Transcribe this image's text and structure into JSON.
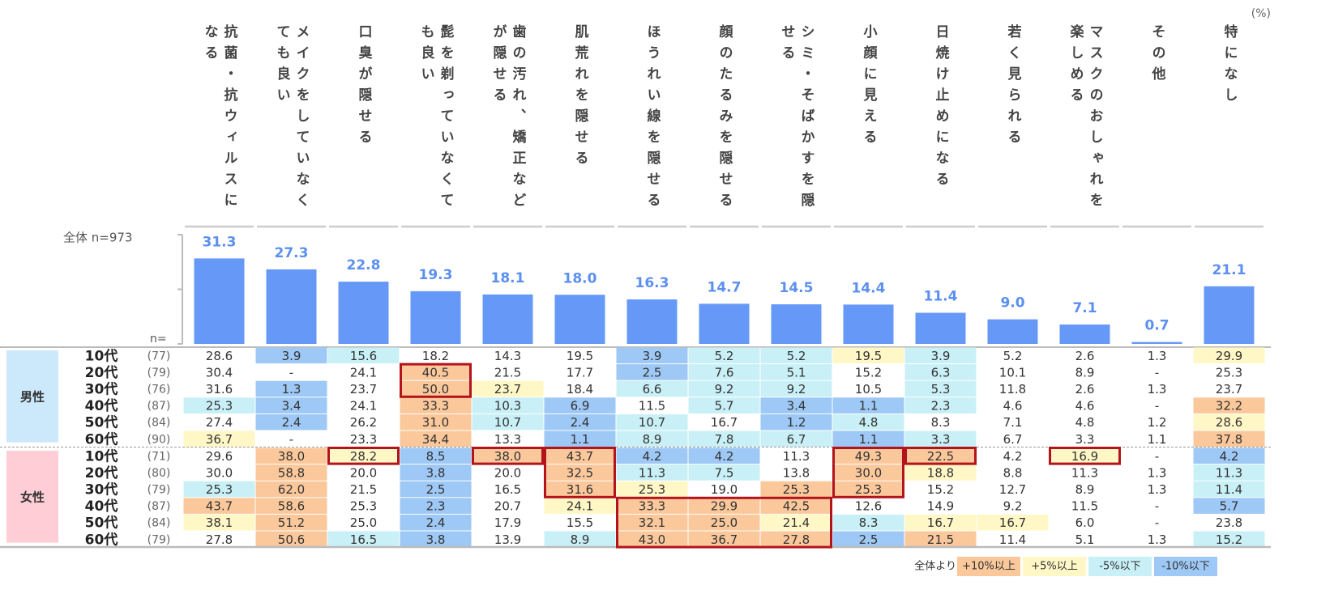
{
  "unit": "(%)",
  "total_label": "全体 n=973",
  "n_label": "n=",
  "chart_data": {
    "type": "bar",
    "categories": [
      "抗菌・抗ウィルスになる",
      "メイクをしていなくても良い",
      "口臭が隠せる",
      "髭を剃っていなくても良い",
      "歯の汚れ、矯正などが隠せる",
      "肌荒れを隠せる",
      "ほうれい線を隠せる",
      "顔のたるみを隠せる",
      "シミ・そばかすを隠せる",
      "小顔に見える",
      "日焼け止めになる",
      "若く見られる",
      "マスクのおしゃれを楽しめる",
      "その他",
      "特になし"
    ],
    "values": [
      31.3,
      27.3,
      22.8,
      19.3,
      18.1,
      18.0,
      16.3,
      14.7,
      14.5,
      14.4,
      11.4,
      9.0,
      7.1,
      0.7,
      21.1
    ],
    "value_labels": [
      "31.3",
      "27.3",
      "22.8",
      "19.3",
      "18.1",
      "18.0",
      "16.3",
      "14.7",
      "14.5",
      "14.4",
      "11.4",
      "9.0",
      "7.1",
      "0.7",
      "21.1"
    ],
    "color": "#6699f7",
    "label_color": "#5b8ff0",
    "ylim": [
      0,
      40
    ],
    "yticks": [
      0,
      20,
      40
    ]
  },
  "table": {
    "groups": [
      {
        "name": "男性",
        "color": "#cce8fb",
        "rows": [
          {
            "age": "10代",
            "n": "(77)",
            "cells": [
              "28.6",
              "3.9",
              "15.6",
              "18.2",
              "14.3",
              "19.5",
              "3.9",
              "5.2",
              "5.2",
              "19.5",
              "3.9",
              "5.2",
              "2.6",
              "1.3",
              "29.9"
            ]
          },
          {
            "age": "20代",
            "n": "(79)",
            "cells": [
              "30.4",
              "-",
              "24.1",
              "40.5",
              "21.5",
              "17.7",
              "2.5",
              "7.6",
              "5.1",
              "15.2",
              "6.3",
              "10.1",
              "8.9",
              "-",
              "25.3"
            ]
          },
          {
            "age": "30代",
            "n": "(76)",
            "cells": [
              "31.6",
              "1.3",
              "23.7",
              "50.0",
              "23.7",
              "18.4",
              "6.6",
              "9.2",
              "9.2",
              "10.5",
              "5.3",
              "11.8",
              "2.6",
              "1.3",
              "23.7"
            ]
          },
          {
            "age": "40代",
            "n": "(87)",
            "cells": [
              "25.3",
              "3.4",
              "24.1",
              "33.3",
              "10.3",
              "6.9",
              "11.5",
              "5.7",
              "3.4",
              "1.1",
              "2.3",
              "4.6",
              "4.6",
              "-",
              "32.2"
            ]
          },
          {
            "age": "50代",
            "n": "(84)",
            "cells": [
              "27.4",
              "2.4",
              "26.2",
              "31.0",
              "10.7",
              "2.4",
              "10.7",
              "16.7",
              "1.2",
              "4.8",
              "8.3",
              "7.1",
              "4.8",
              "1.2",
              "28.6"
            ]
          },
          {
            "age": "60代",
            "n": "(90)",
            "cells": [
              "36.7",
              "-",
              "23.3",
              "34.4",
              "13.3",
              "1.1",
              "8.9",
              "7.8",
              "6.7",
              "1.1",
              "3.3",
              "6.7",
              "3.3",
              "1.1",
              "37.8"
            ]
          }
        ]
      },
      {
        "name": "女性",
        "color": "#ffcdd6",
        "rows": [
          {
            "age": "10代",
            "n": "(71)",
            "cells": [
              "29.6",
              "38.0",
              "28.2",
              "8.5",
              "38.0",
              "43.7",
              "4.2",
              "4.2",
              "11.3",
              "49.3",
              "22.5",
              "4.2",
              "16.9",
              "-",
              "4.2"
            ]
          },
          {
            "age": "20代",
            "n": "(80)",
            "cells": [
              "30.0",
              "58.8",
              "20.0",
              "3.8",
              "20.0",
              "32.5",
              "11.3",
              "7.5",
              "13.8",
              "30.0",
              "18.8",
              "8.8",
              "11.3",
              "1.3",
              "11.3"
            ]
          },
          {
            "age": "30代",
            "n": "(79)",
            "cells": [
              "25.3",
              "62.0",
              "21.5",
              "2.5",
              "16.5",
              "31.6",
              "25.3",
              "19.0",
              "25.3",
              "25.3",
              "15.2",
              "12.7",
              "8.9",
              "1.3",
              "11.4"
            ]
          },
          {
            "age": "40代",
            "n": "(87)",
            "cells": [
              "43.7",
              "58.6",
              "25.3",
              "2.3",
              "20.7",
              "24.1",
              "33.3",
              "29.9",
              "42.5",
              "12.6",
              "14.9",
              "9.2",
              "11.5",
              "-",
              "5.7"
            ]
          },
          {
            "age": "50代",
            "n": "(84)",
            "cells": [
              "38.1",
              "51.2",
              "25.0",
              "2.4",
              "17.9",
              "15.5",
              "32.1",
              "25.0",
              "21.4",
              "8.3",
              "16.7",
              "16.7",
              "6.0",
              "-",
              "23.8"
            ]
          },
          {
            "age": "60代",
            "n": "(79)",
            "cells": [
              "27.8",
              "50.6",
              "16.5",
              "3.8",
              "13.9",
              "8.9",
              "43.0",
              "36.7",
              "27.8",
              "2.5",
              "21.5",
              "11.4",
              "5.1",
              "1.3",
              "15.2"
            ]
          }
        ]
      }
    ]
  },
  "legend": {
    "prefix": "全体より",
    "items": [
      {
        "label": "+10%以上",
        "color": "#fbc89b"
      },
      {
        "label": "+5%以上",
        "color": "#fff7c6"
      },
      {
        "label": "-5%以下",
        "color": "#c9f0f7"
      },
      {
        "label": "-10%以下",
        "color": "#9ec8f5"
      }
    ]
  }
}
